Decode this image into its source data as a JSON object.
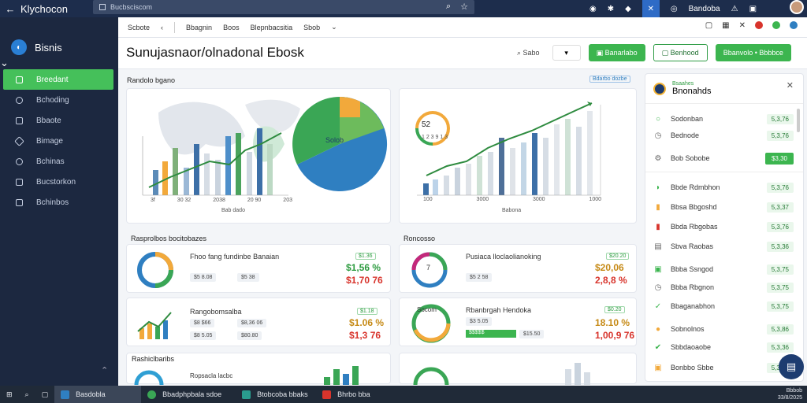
{
  "topbar": {
    "app_name": "Klychocon",
    "url": "Bucbsciscom",
    "icons": [
      "back-icon",
      "search-icon",
      "star-icon",
      "refresh-icon",
      "settings-icon",
      "share-icon",
      "profile-icon",
      "bell-icon",
      "menu-icon"
    ],
    "user_name": "Bandoba"
  },
  "sidebar": {
    "brand": "Bisnis",
    "items": [
      {
        "label": "Breedant",
        "active": true
      },
      {
        "label": "Bchoding"
      },
      {
        "label": "Bbaote"
      },
      {
        "label": "Bimage"
      },
      {
        "label": "Bchinas"
      },
      {
        "label": "Bucstorkon"
      },
      {
        "label": "Bchinbos"
      }
    ]
  },
  "toolbar": {
    "items": [
      "Scbote",
      "Bbagnin",
      "Boos",
      "Blepnbacsitia",
      "Sbob"
    ]
  },
  "header": {
    "title": "Sunujasnaor/olnadonal Ebosk",
    "filter_label": "Sabo",
    "dropdown_value": "▾",
    "btn_primary": "Banarlabo",
    "btn_outline": "Benhood",
    "btn_secondary": "Bbanvolo • Bbbbce"
  },
  "map_card": {
    "title": "Randolo bgano",
    "pie_label": "Solob",
    "x_labels": [
      "3f",
      "30 32",
      "2038",
      "20 90",
      "203"
    ],
    "x_title": "Bab dado",
    "colors": {
      "pie_green": "#3aa655",
      "pie_blue": "#2f7fc1",
      "pie_orange": "#f2a93b"
    }
  },
  "bar_card": {
    "gauge_value": "52",
    "gauge_sub": "1 2 3 9 1 3",
    "x_labels": [
      "100",
      "3000",
      "3000",
      "1000"
    ],
    "x_title": "Babona"
  },
  "tag_top_right": "Bdarbo dozbe",
  "section1": {
    "title": "Rasprolbos bocitobazes",
    "card_a": {
      "title": "Fhoo fang fundinbe Banaian",
      "tags": [
        "$5 8.08",
        "$5 38"
      ],
      "green": "$1,56 %",
      "red": "$1,70 76",
      "badge": "$1.36"
    },
    "card_b": {
      "title": "Roncosso",
      "donut": "7",
      "subtitle": "Pusiaca lloclaolianoking",
      "tag": "$5 2 58",
      "green": "$20,06",
      "red": "2,8,8 %",
      "badge": "$20.20"
    }
  },
  "section2": {
    "card_a": {
      "title": "Rangobomsalba",
      "values": [
        "$8 $66",
        "$8,36 06",
        "$8 5.05",
        "$80.80"
      ],
      "green": "$1.06 %",
      "red": "$1,3 76",
      "badge": "$1.18"
    },
    "card_b": {
      "donut": "Socom",
      "title": "Rbanbrgah Hendoka",
      "values": [
        "$3 5.05",
        "$15.50"
      ],
      "green_bar": "$$$$$",
      "green": "18.10 %",
      "red": "1,00,9 76",
      "badge": "$0.20"
    }
  },
  "section3": {
    "title": "Rashiclbaribs",
    "sub": "Ropsacla lacbc"
  },
  "right_panel": {
    "header_sub": "Bsaahes",
    "title": "Bnonahds",
    "rows": [
      {
        "label": "Sodonban",
        "value": "5,3,76"
      },
      {
        "label": "Bednode",
        "value": "5,3,76"
      },
      {
        "label": "Bob Sobobe",
        "value": "$3,30",
        "solid": true
      },
      {
        "label": "Bbde Rdmbhon",
        "value": "5,3,76"
      },
      {
        "label": "Bbsa Bbgoshd",
        "value": "5,3,37"
      },
      {
        "label": "Bbda Rbgobas",
        "value": "5,3,76"
      },
      {
        "label": "Sbva Raobas",
        "value": "5,3,36"
      },
      {
        "label": "Bbba Ssngod",
        "value": "5,3,75"
      },
      {
        "label": "Bbba Rbgnon",
        "value": "5,3,75"
      },
      {
        "label": "Bbaganabhon",
        "value": "5,3,75"
      },
      {
        "label": "Sobnolnos",
        "value": "5,3,86"
      },
      {
        "label": "Sbbdaoaobe",
        "value": "5,3,36"
      },
      {
        "label": "Bonbbo Sbbe",
        "value": "5,3,36"
      }
    ]
  },
  "taskbar": {
    "tasks": [
      "Basdobla",
      "Bbadphpbala sdoe",
      "Btobcoba bbaks",
      "Bhrbo bba"
    ],
    "time": "Bbbob",
    "date": "33/8/2025"
  }
}
